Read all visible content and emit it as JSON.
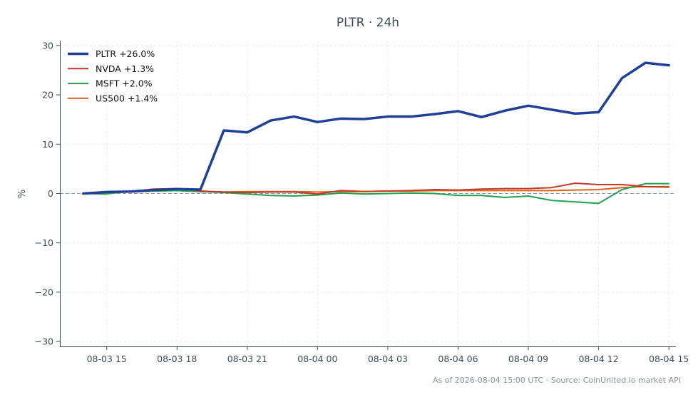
{
  "chart_data": {
    "type": "line",
    "title": "PLTR · 24h",
    "xlabel": "",
    "ylabel": "%",
    "ylim": [
      -31,
      31
    ],
    "yticks": [
      30,
      20,
      10,
      0,
      -10,
      -20,
      -30
    ],
    "ytick_labels": [
      "30",
      "20",
      "10",
      "0",
      "−10",
      "−20",
      "−30"
    ],
    "x_start": "08-03 14",
    "x_step_hours": 1,
    "xlim_hours": [
      -1,
      25.3
    ],
    "xticks": [
      1,
      4,
      7,
      10,
      13,
      16,
      19,
      22,
      25
    ],
    "xtick_labels": [
      "08-03 15",
      "08-03 18",
      "08-03 21",
      "08-04 00",
      "08-04 03",
      "08-04 06",
      "08-04 09",
      "08-04 12",
      "08-04 15"
    ],
    "grid": true,
    "zero_line": true,
    "legend_position": "top-left",
    "series": [
      {
        "name": "PLTR +26.0%",
        "color": "#1f3f99",
        "width": 3.5,
        "values": [
          0,
          0.3,
          0.4,
          0.7,
          0.9,
          0.8,
          12.8,
          12.4,
          14.8,
          15.6,
          14.5,
          15.2,
          15.1,
          15.6,
          15.6,
          16.1,
          16.7,
          15.5,
          16.8,
          17.8,
          17.0,
          16.2,
          16.5,
          23.4,
          26.5,
          26.0
        ]
      },
      {
        "name": "NVDA +1.3%",
        "color": "#c0392b",
        "width": 2,
        "values": [
          0,
          0.2,
          0.4,
          0.9,
          1.0,
          0.5,
          0.3,
          0.2,
          0.3,
          0.3,
          -0.1,
          0.6,
          0.4,
          0.5,
          0.6,
          0.8,
          0.7,
          0.9,
          1.0,
          1.0,
          1.2,
          2.1,
          1.8,
          1.8,
          1.4,
          1.3
        ]
      },
      {
        "name": "MSFT +2.0%",
        "color": "#23a04e",
        "width": 2,
        "values": [
          0,
          -0.1,
          0.5,
          0.5,
          0.6,
          0.4,
          0.2,
          -0.1,
          -0.4,
          -0.5,
          -0.3,
          0.1,
          -0.1,
          0.0,
          0.1,
          0.0,
          -0.4,
          -0.4,
          -0.8,
          -0.5,
          -1.4,
          -1.7,
          -2.0,
          0.8,
          2.0,
          2.0
        ]
      },
      {
        "name": "US500 +1.4%",
        "color": "#e3621b",
        "width": 2,
        "values": [
          0,
          0.2,
          0.3,
          0.5,
          0.6,
          0.4,
          0.3,
          0.4,
          0.4,
          0.4,
          0.3,
          0.4,
          0.4,
          0.5,
          0.5,
          0.6,
          0.6,
          0.6,
          0.6,
          0.6,
          0.6,
          0.7,
          0.8,
          1.2,
          1.4,
          1.4
        ]
      }
    ]
  },
  "footer": "As of 2026-08-04 15:00 UTC · Source: CoinUnited.io market API"
}
